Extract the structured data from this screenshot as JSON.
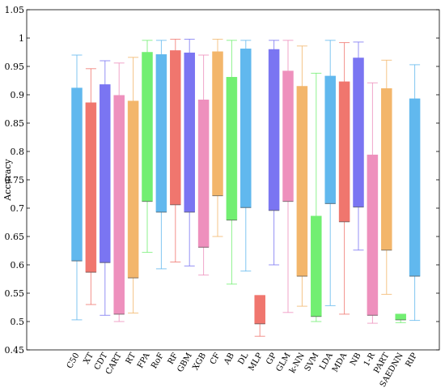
{
  "chart_data": {
    "type": "box",
    "title": "",
    "xlabel": "",
    "ylabel": "Accuracy",
    "ylim": [
      0.45,
      1.05
    ],
    "yticks": [
      "0.45",
      "0.5",
      "0.55",
      "0.6",
      "0.65",
      "0.7",
      "0.75",
      "0.8",
      "0.85",
      "0.9",
      "0.95",
      "1",
      "1.05"
    ],
    "grid": false,
    "boxes": [
      {
        "name": "C50",
        "min": 0.503,
        "q1": 0.607,
        "median": 0.607,
        "q3": 0.912,
        "max": 0.97,
        "color": "#61b8ee"
      },
      {
        "name": "XT",
        "min": 0.53,
        "q1": 0.587,
        "median": 0.587,
        "q3": 0.886,
        "max": 0.946,
        "color": "#f0766e"
      },
      {
        "name": "CDT",
        "min": 0.511,
        "q1": 0.604,
        "median": 0.604,
        "q3": 0.918,
        "max": 0.96,
        "color": "#7a75f2"
      },
      {
        "name": "CART",
        "min": 0.5,
        "q1": 0.513,
        "median": 0.513,
        "q3": 0.899,
        "max": 0.956,
        "color": "#ee90bd"
      },
      {
        "name": "RT",
        "min": 0.515,
        "q1": 0.577,
        "median": 0.577,
        "q3": 0.889,
        "max": 0.966,
        "color": "#f3b66b"
      },
      {
        "name": "FPA",
        "min": 0.622,
        "q1": 0.712,
        "median": 0.712,
        "q3": 0.975,
        "max": 0.996,
        "color": "#72ef72"
      },
      {
        "name": "RoF",
        "min": 0.593,
        "q1": 0.693,
        "median": 0.693,
        "q3": 0.971,
        "max": 0.996,
        "color": "#61b8ee"
      },
      {
        "name": "RF",
        "min": 0.605,
        "q1": 0.706,
        "median": 0.706,
        "q3": 0.978,
        "max": 0.998,
        "color": "#f0766e"
      },
      {
        "name": "GBM",
        "min": 0.598,
        "q1": 0.693,
        "median": 0.693,
        "q3": 0.974,
        "max": 0.998,
        "color": "#7a75f2"
      },
      {
        "name": "XGB",
        "min": 0.582,
        "q1": 0.631,
        "median": 0.631,
        "q3": 0.891,
        "max": 0.97,
        "color": "#ee90bd"
      },
      {
        "name": "CF",
        "min": 0.65,
        "q1": 0.722,
        "median": 0.722,
        "q3": 0.976,
        "max": 0.998,
        "color": "#f3b66b"
      },
      {
        "name": "AB",
        "min": 0.566,
        "q1": 0.679,
        "median": 0.679,
        "q3": 0.931,
        "max": 0.996,
        "color": "#72ef72"
      },
      {
        "name": "DL",
        "min": 0.589,
        "q1": 0.701,
        "median": 0.701,
        "q3": 0.981,
        "max": 0.996,
        "color": "#61b8ee"
      },
      {
        "name": "MLP",
        "min": 0.474,
        "q1": 0.496,
        "median": 0.496,
        "q3": 0.546,
        "max": 0.546,
        "color": "#f0766e"
      },
      {
        "name": "GP",
        "min": 0.6,
        "q1": 0.696,
        "median": 0.696,
        "q3": 0.98,
        "max": 0.996,
        "color": "#7a75f2"
      },
      {
        "name": "GLM",
        "min": 0.516,
        "q1": 0.712,
        "median": 0.712,
        "q3": 0.942,
        "max": 0.996,
        "color": "#ee90bd"
      },
      {
        "name": "k-NN",
        "min": 0.527,
        "q1": 0.58,
        "median": 0.58,
        "q3": 0.915,
        "max": 0.986,
        "color": "#f3b66b"
      },
      {
        "name": "SVM",
        "min": 0.5,
        "q1": 0.509,
        "median": 0.509,
        "q3": 0.686,
        "max": 0.938,
        "color": "#72ef72"
      },
      {
        "name": "LDA",
        "min": 0.528,
        "q1": 0.708,
        "median": 0.708,
        "q3": 0.933,
        "max": 0.996,
        "color": "#61b8ee"
      },
      {
        "name": "MDA",
        "min": 0.513,
        "q1": 0.676,
        "median": 0.676,
        "q3": 0.923,
        "max": 0.992,
        "color": "#f0766e"
      },
      {
        "name": "NB",
        "min": 0.626,
        "q1": 0.702,
        "median": 0.702,
        "q3": 0.965,
        "max": 0.993,
        "color": "#7a75f2"
      },
      {
        "name": "1-R",
        "min": 0.497,
        "q1": 0.511,
        "median": 0.511,
        "q3": 0.794,
        "max": 0.921,
        "color": "#ee90bd"
      },
      {
        "name": "PART",
        "min": 0.548,
        "q1": 0.626,
        "median": 0.626,
        "q3": 0.911,
        "max": 0.961,
        "color": "#f3b66b"
      },
      {
        "name": "SAEDNN",
        "min": 0.498,
        "q1": 0.503,
        "median": 0.503,
        "q3": 0.513,
        "max": 0.513,
        "color": "#72ef72"
      },
      {
        "name": "RIP",
        "min": 0.502,
        "q1": 0.58,
        "median": 0.58,
        "q3": 0.893,
        "max": 0.953,
        "color": "#61b8ee"
      }
    ]
  }
}
